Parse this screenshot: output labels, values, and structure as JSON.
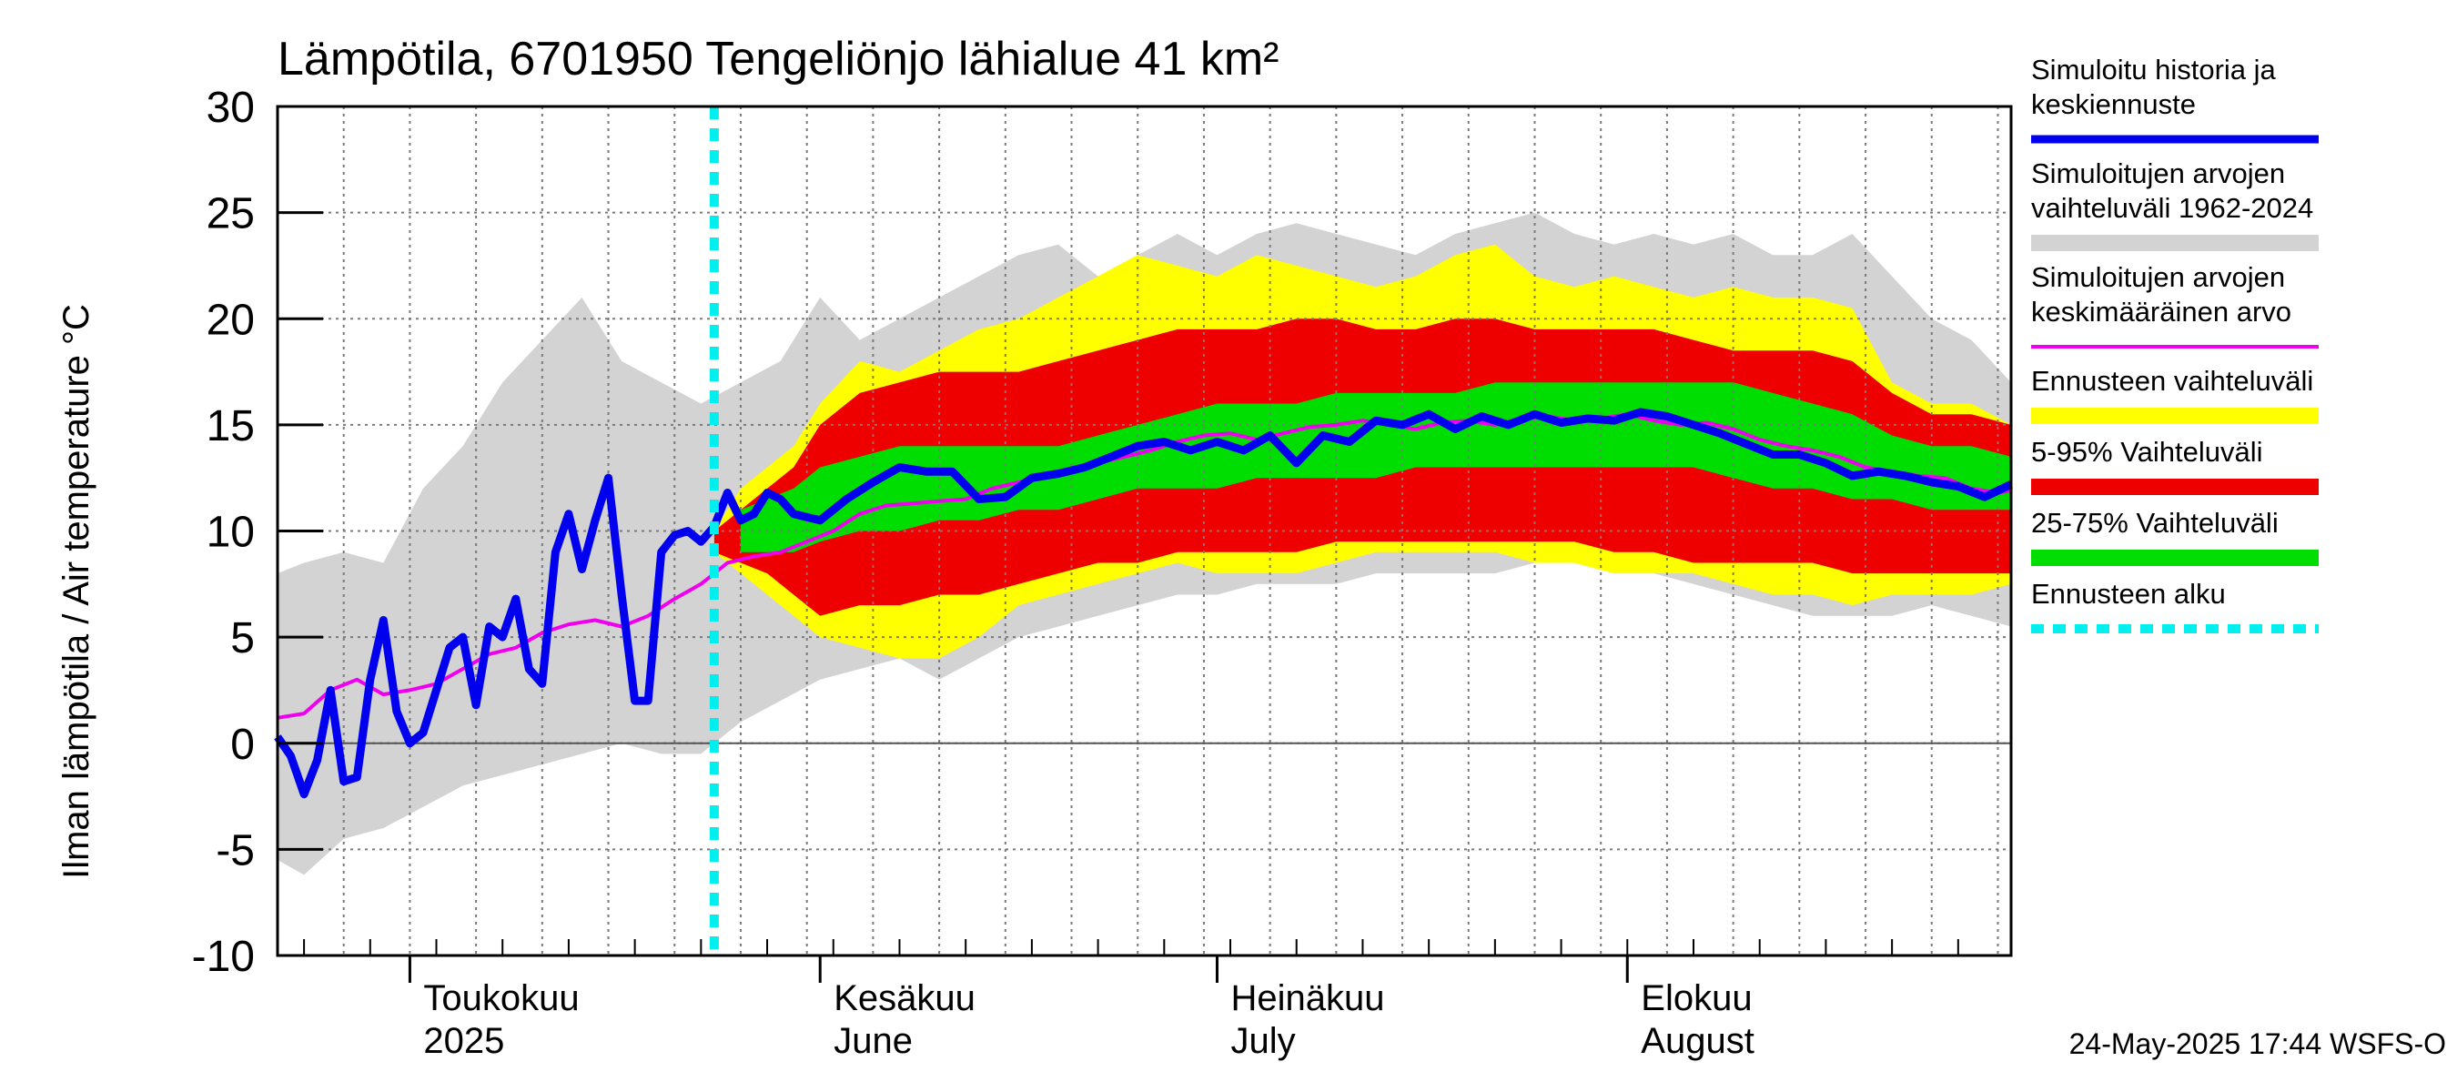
{
  "chart_data": {
    "type": "area",
    "title": "Lämpötila, 6701950 Tengeliönjo lähialue 41 km²",
    "ylabel": "Ilman lämpötila / Air temperature   °C",
    "xlabel": "",
    "ylim": [
      -10,
      30
    ],
    "yticks": [
      "30",
      "25",
      "20",
      "15",
      "10",
      "5",
      "0",
      "-5",
      "-10"
    ],
    "grid": true,
    "x_unit": "day-of-year",
    "xlim": [
      111,
      242
    ],
    "forecast_start_day": 144,
    "month_labels": [
      {
        "fi": "Toukokuu",
        "en": "2025",
        "day": 121
      },
      {
        "fi": "Kesäkuu",
        "en": "June",
        "day": 152
      },
      {
        "fi": "Heinäkuu",
        "en": "July",
        "day": 182
      },
      {
        "fi": "Elokuu",
        "en": "August",
        "day": 213
      }
    ],
    "timestamp": "24-May-2025 17:44 WSFS-O",
    "legend": {
      "position": "right",
      "items": [
        {
          "label": [
            "Simuloitu historia ja",
            "keskiennuste"
          ],
          "color": "#0000ee",
          "style": "thick-line"
        },
        {
          "label": [
            "Simuloitujen arvojen",
            "vaihteluväli 1962-2024"
          ],
          "color": "#d3d3d3",
          "style": "band"
        },
        {
          "label": [
            "Simuloitujen arvojen",
            "keskimääräinen arvo"
          ],
          "color": "#ee00ee",
          "style": "line"
        },
        {
          "label": [
            "Ennusteen vaihteluväli"
          ],
          "color": "#ffff00",
          "style": "band"
        },
        {
          "label": [
            "5-95% Vaihteluväli"
          ],
          "color": "#ee0000",
          "style": "band"
        },
        {
          "label": [
            "25-75% Vaihteluväli"
          ],
          "color": "#00dd00",
          "style": "band"
        },
        {
          "label": [
            "Ennusteen alku"
          ],
          "color": "#00eeee",
          "style": "dashed"
        }
      ]
    },
    "series": [
      {
        "name": "Simuloitujen arvojen vaihteluväli 1962-2024",
        "kind": "band",
        "color": "#d3d3d3",
        "x": [
          111,
          113,
          116,
          119,
          122,
          125,
          128,
          131,
          134,
          137,
          140,
          143,
          146,
          149,
          152,
          155,
          158,
          161,
          164,
          167,
          170,
          173,
          176,
          179,
          182,
          185,
          188,
          191,
          194,
          197,
          200,
          203,
          206,
          209,
          212,
          215,
          218,
          221,
          224,
          227,
          230,
          233,
          236,
          239,
          242
        ],
        "upper": [
          8,
          8.5,
          9,
          8.5,
          12,
          14,
          17,
          19,
          21,
          18,
          17,
          16,
          17,
          18,
          21,
          19,
          20,
          21,
          22,
          23,
          23.5,
          22,
          23,
          24,
          23,
          24,
          24.5,
          24,
          23.5,
          23,
          24,
          24.5,
          25,
          24,
          23.5,
          24,
          23.5,
          24,
          23,
          23,
          24,
          22,
          20,
          19,
          17
        ],
        "lower": [
          -5.5,
          -6.2,
          -4.5,
          -4,
          -3,
          -2,
          -1.5,
          -1,
          -0.5,
          0,
          -0.5,
          -0.5,
          1,
          2,
          3,
          3.5,
          4,
          3,
          4,
          5,
          5.5,
          6,
          6.5,
          7,
          7,
          7.5,
          7.5,
          7.5,
          8,
          8,
          8,
          8,
          8.5,
          8.5,
          8,
          8,
          7.5,
          7,
          6.5,
          6,
          6,
          6,
          6.5,
          6,
          5.5
        ]
      },
      {
        "name": "Ennusteen vaihteluväli",
        "kind": "band",
        "color": "#ffff00",
        "x": [
          144,
          146,
          148,
          150,
          152,
          155,
          158,
          161,
          164,
          167,
          170,
          173,
          176,
          179,
          182,
          185,
          188,
          191,
          194,
          197,
          200,
          203,
          206,
          209,
          212,
          215,
          218,
          221,
          224,
          227,
          230,
          233,
          236,
          239,
          242
        ],
        "upper": [
          10,
          12,
          13,
          14,
          16,
          18,
          17.5,
          18.5,
          19.5,
          20,
          21,
          22,
          23,
          22.5,
          22,
          23,
          22.5,
          22,
          21.5,
          22,
          23,
          23.5,
          22,
          21.5,
          22,
          21.5,
          21,
          21.5,
          21,
          21,
          20.5,
          17,
          16,
          16,
          15
        ],
        "lower": [
          9,
          8,
          7,
          6,
          5,
          4.5,
          4,
          4,
          5,
          6.5,
          7,
          7.5,
          8,
          8.5,
          8,
          8,
          8,
          8.5,
          9,
          9,
          9,
          9,
          8.5,
          8.5,
          8,
          8,
          8,
          7.5,
          7,
          7,
          6.5,
          7,
          7,
          7,
          7.5
        ]
      },
      {
        "name": "5-95% Vaihteluväli",
        "kind": "band",
        "color": "#ee0000",
        "x": [
          144,
          146,
          148,
          150,
          152,
          155,
          158,
          161,
          164,
          167,
          170,
          173,
          176,
          179,
          182,
          185,
          188,
          191,
          194,
          197,
          200,
          203,
          206,
          209,
          212,
          215,
          218,
          221,
          224,
          227,
          230,
          233,
          236,
          239,
          242
        ],
        "upper": [
          10,
          11,
          12,
          13,
          15,
          16.5,
          17,
          17.5,
          17.5,
          17.5,
          18,
          18.5,
          19,
          19.5,
          19.5,
          19.5,
          20,
          20,
          19.5,
          19.5,
          20,
          20,
          19.5,
          19.5,
          19.5,
          19.5,
          19,
          18.5,
          18.5,
          18.5,
          18,
          16.5,
          15.5,
          15.5,
          15
        ],
        "lower": [
          9,
          8.5,
          8,
          7,
          6,
          6.5,
          6.5,
          7,
          7,
          7.5,
          8,
          8.5,
          8.5,
          9,
          9,
          9,
          9,
          9.5,
          9.5,
          9.5,
          9.5,
          9.5,
          9.5,
          9.5,
          9,
          9,
          8.5,
          8.5,
          8.5,
          8.5,
          8,
          8,
          8,
          8,
          8
        ]
      },
      {
        "name": "25-75% Vaihteluväli",
        "kind": "band",
        "color": "#00dd00",
        "x": [
          146,
          148,
          150,
          152,
          155,
          158,
          161,
          164,
          167,
          170,
          173,
          176,
          179,
          182,
          185,
          188,
          191,
          194,
          197,
          200,
          203,
          206,
          209,
          212,
          215,
          218,
          221,
          224,
          227,
          230,
          233,
          236,
          239,
          242
        ],
        "upper": [
          11,
          11.5,
          12,
          13,
          13.5,
          14,
          14,
          14,
          14,
          14,
          14.5,
          15,
          15.5,
          16,
          16,
          16,
          16.5,
          16.5,
          16.5,
          16.5,
          17,
          17,
          17,
          17,
          17,
          17,
          17,
          16.5,
          16,
          15.5,
          14.5,
          14,
          14,
          13.5
        ],
        "lower": [
          9,
          9,
          9,
          9.5,
          10,
          10,
          10.5,
          10.5,
          11,
          11,
          11.5,
          12,
          12,
          12,
          12.5,
          12.5,
          12.5,
          12.5,
          13,
          13,
          13,
          13,
          13,
          13,
          13,
          13,
          12.5,
          12,
          12,
          11.5,
          11.5,
          11,
          11,
          11
        ]
      },
      {
        "name": "Simuloitujen arvojen keskimääräinen arvo",
        "kind": "line",
        "color": "#ee00ee",
        "x": [
          111,
          113,
          115,
          117,
          119,
          121,
          123,
          125,
          127,
          129,
          131,
          133,
          135,
          137,
          139,
          141,
          143,
          145,
          147,
          149,
          151,
          153,
          155,
          157,
          159,
          161,
          163,
          165,
          167,
          169,
          171,
          173,
          175,
          177,
          179,
          181,
          183,
          185,
          187,
          189,
          191,
          193,
          195,
          197,
          199,
          201,
          203,
          205,
          207,
          209,
          211,
          213,
          215,
          217,
          219,
          221,
          223,
          225,
          227,
          229,
          231,
          233,
          235,
          237,
          239,
          241,
          242
        ],
        "values": [
          1.2,
          1.4,
          2.5,
          3.0,
          2.3,
          2.5,
          2.8,
          3.5,
          4.2,
          4.5,
          5.2,
          5.6,
          5.8,
          5.5,
          6.0,
          6.8,
          7.5,
          8.5,
          8.8,
          9.0,
          9.5,
          10.0,
          10.8,
          11.2,
          11.3,
          11.4,
          11.5,
          12.0,
          12.3,
          12.5,
          12.8,
          13.2,
          13.5,
          13.8,
          14.2,
          14.5,
          14.6,
          14.3,
          14.6,
          14.9,
          15.0,
          15.2,
          15.0,
          14.8,
          15.1,
          15.2,
          15.0,
          15.3,
          15.4,
          15.2,
          15.3,
          15.5,
          15.2,
          15.0,
          15.1,
          14.8,
          14.3,
          14.0,
          13.8,
          13.5,
          13.0,
          12.8,
          12.6,
          12.5,
          12.0,
          11.8,
          11.9
        ]
      },
      {
        "name": "Simuloitu historia ja keskiennuste",
        "kind": "line",
        "color": "#0000ee",
        "x": [
          111,
          112,
          113,
          114,
          115,
          116,
          117,
          118,
          119,
          120,
          121,
          122,
          123,
          124,
          125,
          126,
          127,
          128,
          129,
          130,
          131,
          132,
          133,
          134,
          135,
          136,
          137,
          138,
          139,
          140,
          141,
          142,
          143,
          144,
          145,
          146,
          147,
          148,
          149,
          150,
          152,
          154,
          156,
          158,
          160,
          162,
          164,
          166,
          168,
          170,
          172,
          174,
          176,
          178,
          180,
          182,
          184,
          186,
          188,
          190,
          192,
          194,
          196,
          198,
          200,
          202,
          204,
          206,
          208,
          210,
          212,
          214,
          216,
          218,
          220,
          222,
          224,
          226,
          228,
          230,
          232,
          234,
          236,
          238,
          240,
          242
        ],
        "values": [
          0.3,
          -0.6,
          -2.4,
          -0.8,
          2.5,
          -1.8,
          -1.6,
          3.0,
          5.8,
          1.5,
          0.0,
          0.5,
          2.5,
          4.5,
          5.0,
          1.8,
          5.5,
          5.0,
          6.8,
          3.5,
          2.8,
          9.0,
          10.8,
          8.2,
          10.5,
          12.5,
          7.0,
          2.0,
          2.0,
          9.0,
          9.8,
          10.0,
          9.5,
          10.2,
          11.8,
          10.5,
          10.8,
          11.8,
          11.5,
          10.8,
          10.5,
          11.5,
          12.3,
          13.0,
          12.8,
          12.8,
          11.5,
          11.6,
          12.5,
          12.7,
          13.0,
          13.5,
          14.0,
          14.2,
          13.8,
          14.2,
          13.8,
          14.5,
          13.2,
          14.5,
          14.2,
          15.2,
          15.0,
          15.5,
          14.8,
          15.4,
          15.0,
          15.5,
          15.1,
          15.3,
          15.2,
          15.6,
          15.4,
          15.0,
          14.6,
          14.1,
          13.6,
          13.6,
          13.2,
          12.6,
          12.8,
          12.6,
          12.3,
          12.1,
          11.6,
          12.2
        ]
      },
      {
        "name": "Ennusteen alku",
        "kind": "vline",
        "color": "#00eeee",
        "x": [
          144
        ]
      }
    ]
  }
}
